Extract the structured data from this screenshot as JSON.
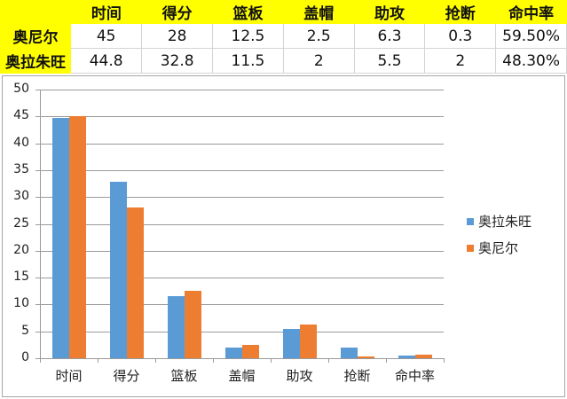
{
  "table": {
    "headers": [
      "",
      "时间",
      "得分",
      "篮板",
      "盖帽",
      "助攻",
      "抢断",
      "命中率"
    ],
    "rows": [
      {
        "name": "奥尼尔",
        "values": [
          "45",
          "28",
          "12.5",
          "2.5",
          "6.3",
          "0.3",
          "59.50%"
        ]
      },
      {
        "name": "奥拉朱旺",
        "values": [
          "44.8",
          "32.8",
          "11.5",
          "2",
          "5.5",
          "2",
          "48.30%"
        ]
      }
    ]
  },
  "chart_data": {
    "type": "bar",
    "title": "",
    "categories": [
      "时间",
      "得分",
      "篮板",
      "盖帽",
      "助攻",
      "抢断",
      "命中率"
    ],
    "series": [
      {
        "name": "奥拉朱旺",
        "color": "#5b9bd5",
        "values": [
          44.8,
          32.8,
          11.5,
          2,
          5.5,
          2,
          0.483
        ]
      },
      {
        "name": "奥尼尔",
        "color": "#ed7d31",
        "values": [
          45,
          28,
          12.5,
          2.5,
          6.3,
          0.3,
          0.595
        ]
      }
    ],
    "xlabel": "",
    "ylabel": "",
    "ylim": [
      0,
      50
    ],
    "yticks": [
      "0",
      "5",
      "10",
      "15",
      "20",
      "25",
      "30",
      "35",
      "40",
      "45",
      "50"
    ],
    "grid": true,
    "legend_position": "right"
  },
  "legend": [
    {
      "label": "奥拉朱旺",
      "color": "#5b9bd5"
    },
    {
      "label": "奥尼尔",
      "color": "#ed7d31"
    }
  ]
}
